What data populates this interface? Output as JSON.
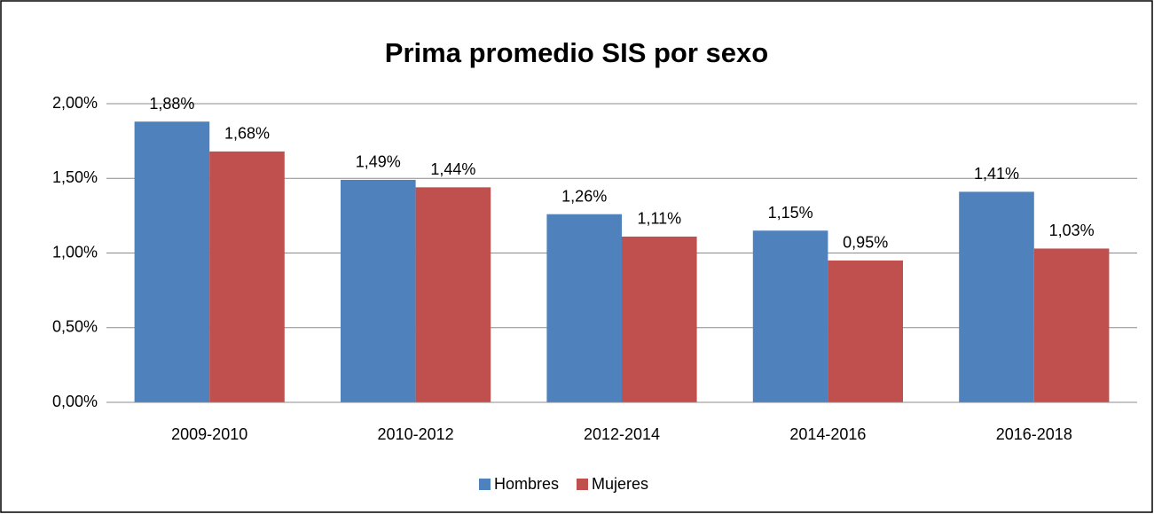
{
  "chart_data": {
    "type": "bar",
    "title": "Prima promedio SIS por sexo",
    "categories": [
      "2009-2010",
      "2010-2012",
      "2012-2014",
      "2014-2016",
      "2016-2018"
    ],
    "series": [
      {
        "name": "Hombres",
        "color": "#4f81bd",
        "values": [
          1.88,
          1.49,
          1.26,
          1.15,
          1.41
        ],
        "value_labels": [
          "1,88%",
          "1,49%",
          "1,26%",
          "1,15%",
          "1,41%"
        ]
      },
      {
        "name": "Mujeres",
        "color": "#c0504d",
        "values": [
          1.68,
          1.44,
          1.11,
          0.95,
          1.03
        ],
        "value_labels": [
          "1,68%",
          "1,44%",
          "1,11%",
          "0,95%",
          "1,03%"
        ]
      }
    ],
    "ylim": [
      0,
      2
    ],
    "yticks": [
      {
        "value": 0,
        "label": "0,00%"
      },
      {
        "value": 0.5,
        "label": "0,50%"
      },
      {
        "value": 1,
        "label": "1,00%"
      },
      {
        "value": 1.5,
        "label": "1,50%"
      },
      {
        "value": 2,
        "label": "2,00%"
      }
    ],
    "grid": true,
    "legend": "bottom"
  }
}
